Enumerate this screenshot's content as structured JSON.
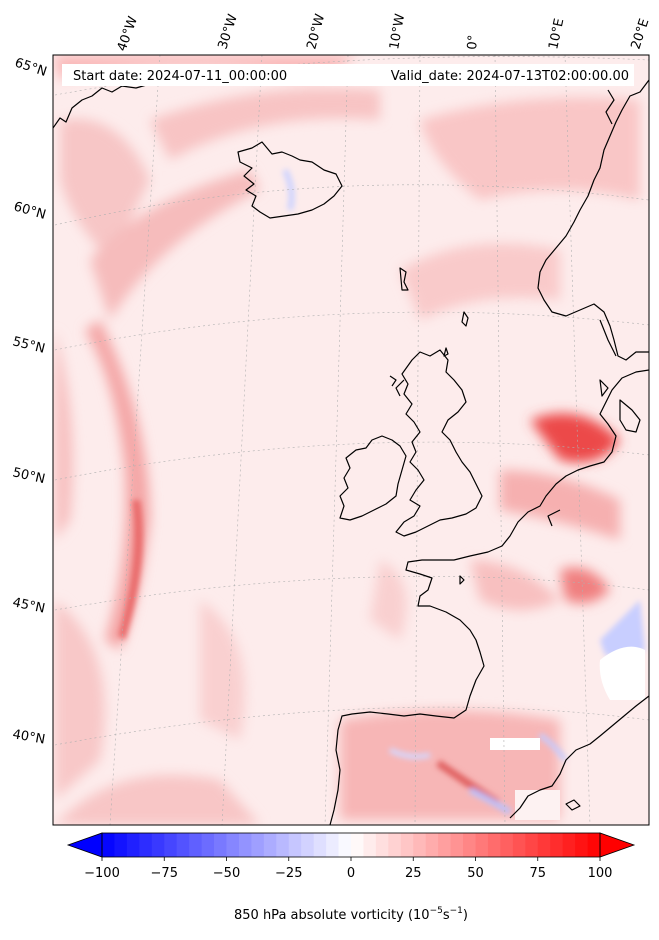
{
  "header": {
    "start_date": "Start date: 2024-07-11_00:00:00",
    "valid_date": "Valid_date: 2024-07-13T02:00:00.00"
  },
  "graticule": {
    "lon_labels": [
      "40°W",
      "30°W",
      "20°W",
      "10°W",
      "0°",
      "10°E",
      "20°E"
    ],
    "lat_labels": [
      "65°N",
      "60°N",
      "55°N",
      "50°N",
      "45°N",
      "40°N"
    ]
  },
  "colorbar": {
    "min": -100,
    "max": 100,
    "ticks": [
      "−100",
      "−75",
      "−50",
      "−25",
      "0",
      "25",
      "50",
      "75",
      "100"
    ],
    "label": "850 hPa absolute vorticity (10",
    "label_exp1": "−5",
    "label_mid": "s",
    "label_exp2": "−1",
    "label_end": ")",
    "colormap": "bwr",
    "extend": "both",
    "colors": {
      "negative": "#0000ff",
      "zero": "#ffffff",
      "positive": "#ff0000"
    }
  },
  "map": {
    "field": "850 hPa absolute vorticity",
    "background": "#fdecec",
    "coastline_color": "#000000"
  }
}
